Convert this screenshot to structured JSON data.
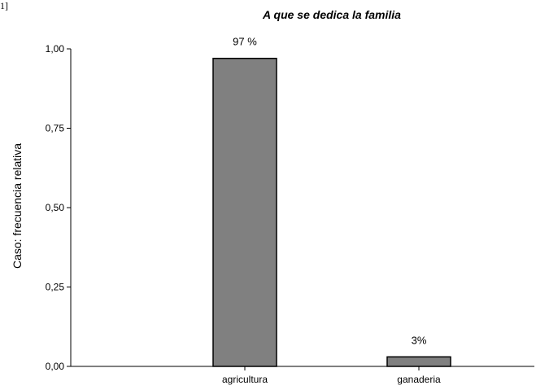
{
  "corner_mark": "1]",
  "chart_data": {
    "type": "bar",
    "title": "A que se dedica la familia",
    "xlabel": "",
    "ylabel": "Caso: frecuencia relativa",
    "categories": [
      "agricultura",
      "ganaderia"
    ],
    "values": [
      0.97,
      0.03
    ],
    "data_labels": [
      "97 %",
      "3%"
    ],
    "ylim": [
      0,
      1
    ],
    "yticks": [
      0,
      0.25,
      0.5,
      0.75,
      1
    ],
    "ytick_labels": [
      "0,00",
      "0,25",
      "0,50",
      "0,75",
      "1,00"
    ],
    "grid": false,
    "bar_color": "#808080",
    "bar_edge_color": "#000000"
  }
}
